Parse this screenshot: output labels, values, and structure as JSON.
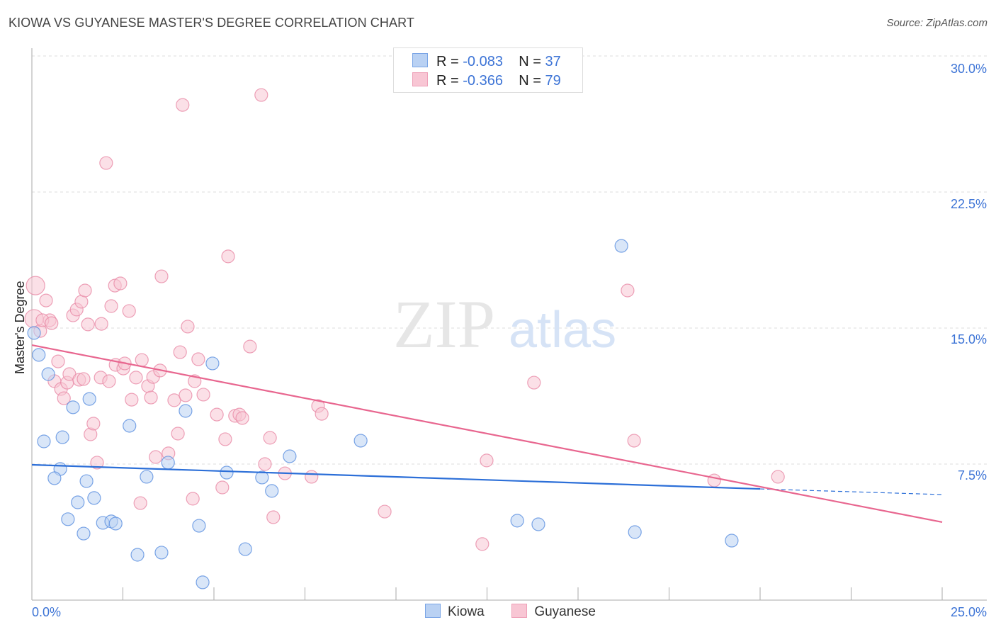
{
  "chart_data": {
    "type": "scatter",
    "title": "KIOWA VS GUYANESE MASTER'S DEGREE CORRELATION CHART",
    "source": "Source: ZipAtlas.com",
    "xlabel": "",
    "ylabel": "Master's Degree",
    "xlim": [
      0,
      25
    ],
    "ylim": [
      0,
      30
    ],
    "x_tick_labels": [
      "0.0%",
      "25.0%"
    ],
    "y_ticks": [
      7.5,
      15,
      22.5,
      30
    ],
    "y_tick_labels": [
      "7.5%",
      "15.0%",
      "22.5%",
      "30.0%"
    ],
    "grid": true,
    "watermark": "ZIPatlas",
    "legend": [
      {
        "name": "Kiowa",
        "r_label": "R =",
        "r": "-0.083",
        "n_label": "N =",
        "n": "37"
      },
      {
        "name": "Guyanese",
        "r_label": "R =",
        "r": "-0.366",
        "n_label": "N =",
        "n": "79"
      }
    ],
    "series": [
      {
        "name": "Kiowa",
        "color": "#5a8fe0",
        "fill": "#b9d1f3",
        "trend": {
          "x0": 0,
          "y0": 7.46,
          "x1": 20,
          "y1": 6.13,
          "dash_to_x": 25,
          "dash_to_y": 5.82,
          "color": "#2c6fd8"
        },
        "points": [
          [
            0.06,
            14.73
          ],
          [
            0.19,
            13.52
          ],
          [
            0.45,
            12.46
          ],
          [
            0.33,
            8.75
          ],
          [
            0.84,
            8.98
          ],
          [
            1.13,
            10.63
          ],
          [
            1.58,
            11.09
          ],
          [
            0.78,
            7.23
          ],
          [
            0.62,
            6.72
          ],
          [
            1.5,
            6.56
          ],
          [
            1.26,
            5.39
          ],
          [
            1.71,
            5.63
          ],
          [
            0.99,
            4.46
          ],
          [
            1.42,
            3.67
          ],
          [
            1.95,
            4.26
          ],
          [
            2.18,
            4.34
          ],
          [
            2.3,
            4.22
          ],
          [
            2.68,
            9.61
          ],
          [
            2.9,
            2.5
          ],
          [
            3.15,
            6.8
          ],
          [
            3.56,
            2.62
          ],
          [
            3.74,
            7.58
          ],
          [
            4.22,
            10.43
          ],
          [
            4.59,
            4.1
          ],
          [
            4.69,
            0.98
          ],
          [
            4.96,
            13.05
          ],
          [
            5.35,
            7.03
          ],
          [
            5.86,
            2.81
          ],
          [
            6.32,
            6.76
          ],
          [
            6.59,
            6.02
          ],
          [
            7.08,
            7.93
          ],
          [
            9.03,
            8.79
          ],
          [
            13.33,
            4.38
          ],
          [
            13.91,
            4.18
          ],
          [
            16.19,
            19.53
          ],
          [
            16.56,
            3.75
          ],
          [
            19.22,
            3.28
          ]
        ]
      },
      {
        "name": "Guyanese",
        "color": "#e98aa6",
        "fill": "#f8c6d4",
        "trend": {
          "x0": 0,
          "y0": 14.06,
          "x1": 25,
          "y1": 4.3,
          "color": "#e8668f"
        },
        "points": [
          [
            0.1,
            17.34
          ],
          [
            0.06,
            15.51
          ],
          [
            0.23,
            14.84
          ],
          [
            0.39,
            16.52
          ],
          [
            0.49,
            15.43
          ],
          [
            0.29,
            15.43
          ],
          [
            0.54,
            15.27
          ],
          [
            0.72,
            13.16
          ],
          [
            0.62,
            12.07
          ],
          [
            0.8,
            11.64
          ],
          [
            0.88,
            11.13
          ],
          [
            0.97,
            11.99
          ],
          [
            1.03,
            12.46
          ],
          [
            1.13,
            15.7
          ],
          [
            1.23,
            16.02
          ],
          [
            1.3,
            12.15
          ],
          [
            1.36,
            16.45
          ],
          [
            1.46,
            17.07
          ],
          [
            1.54,
            15.2
          ],
          [
            1.61,
            9.14
          ],
          [
            1.69,
            9.73
          ],
          [
            1.79,
            7.58
          ],
          [
            1.91,
            15.23
          ],
          [
            1.89,
            12.27
          ],
          [
            2.04,
            24.1
          ],
          [
            2.12,
            12.07
          ],
          [
            2.18,
            16.21
          ],
          [
            2.28,
            17.34
          ],
          [
            2.43,
            17.46
          ],
          [
            2.3,
            12.97
          ],
          [
            2.51,
            12.77
          ],
          [
            2.55,
            13.05
          ],
          [
            2.67,
            15.94
          ],
          [
            2.74,
            11.05
          ],
          [
            2.86,
            12.27
          ],
          [
            3.02,
            13.24
          ],
          [
            3.19,
            11.8
          ],
          [
            3.27,
            11.17
          ],
          [
            3.33,
            12.3
          ],
          [
            3.4,
            7.89
          ],
          [
            3.52,
            12.66
          ],
          [
            2.98,
            5.35
          ],
          [
            3.56,
            17.85
          ],
          [
            3.75,
            8.09
          ],
          [
            3.91,
            11.02
          ],
          [
            4.01,
            9.18
          ],
          [
            4.07,
            13.67
          ],
          [
            4.14,
            27.3
          ],
          [
            4.22,
            11.29
          ],
          [
            4.28,
            15.08
          ],
          [
            4.42,
            5.59
          ],
          [
            4.47,
            12.07
          ],
          [
            4.57,
            13.28
          ],
          [
            4.71,
            11.33
          ],
          [
            5.08,
            10.23
          ],
          [
            5.23,
            6.21
          ],
          [
            5.31,
            8.87
          ],
          [
            5.39,
            18.95
          ],
          [
            5.58,
            10.16
          ],
          [
            5.7,
            10.23
          ],
          [
            5.78,
            10.04
          ],
          [
            5.99,
            13.98
          ],
          [
            6.3,
            27.85
          ],
          [
            6.4,
            7.5
          ],
          [
            6.54,
            8.95
          ],
          [
            6.63,
            4.57
          ],
          [
            6.95,
            6.99
          ],
          [
            7.68,
            6.8
          ],
          [
            7.86,
            10.7
          ],
          [
            7.96,
            10.27
          ],
          [
            9.69,
            4.88
          ],
          [
            12.37,
            3.09
          ],
          [
            12.49,
            7.7
          ],
          [
            13.79,
            11.99
          ],
          [
            16.36,
            17.07
          ],
          [
            16.54,
            8.79
          ],
          [
            18.74,
            6.6
          ],
          [
            20.49,
            6.8
          ],
          [
            1.42,
            12.19
          ]
        ]
      }
    ]
  }
}
